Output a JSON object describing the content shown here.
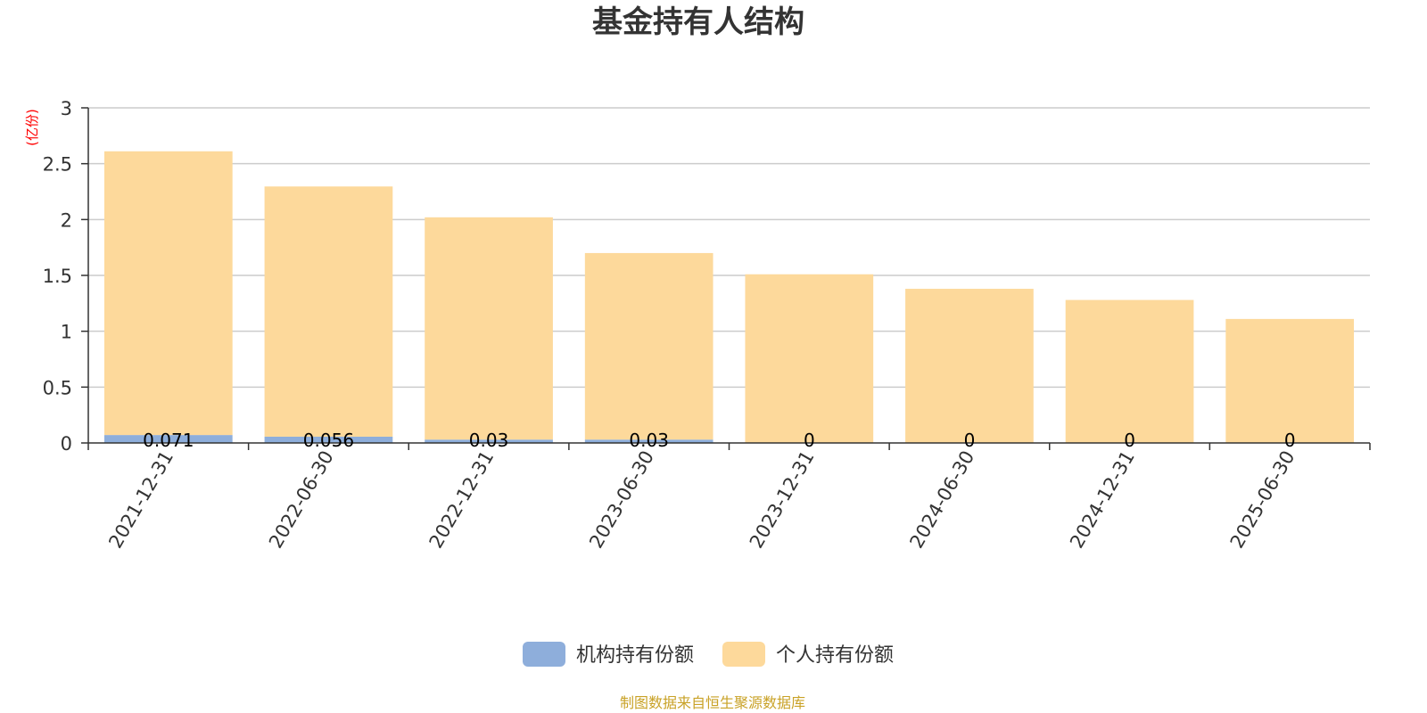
{
  "chart_data": {
    "type": "bar",
    "stacked": true,
    "title": "基金持有人结构",
    "unit_label": "(亿份)",
    "categories": [
      "2021-12-31",
      "2022-06-30",
      "2022-12-31",
      "2023-06-30",
      "2023-12-31",
      "2024-06-30",
      "2024-12-31",
      "2025-06-30"
    ],
    "series": [
      {
        "name": "机构持有份额",
        "color": "#8eaedb",
        "values": [
          0.071,
          0.056,
          0.03,
          0.03,
          0,
          0,
          0,
          0
        ],
        "labels": [
          "0.071",
          "0.056",
          "0.03",
          "0.03",
          "0",
          "0",
          "0",
          "0"
        ]
      },
      {
        "name": "个人持有份额",
        "color": "#fdd99b",
        "values": [
          2.54,
          2.24,
          1.99,
          1.67,
          1.51,
          1.38,
          1.28,
          1.11
        ]
      }
    ],
    "ylim": [
      0,
      3
    ],
    "yticks": [
      "0",
      "0.5",
      "1",
      "1.5",
      "2",
      "2.5",
      "3"
    ],
    "grid": true,
    "legend_position": "bottom-center",
    "source_note": "制图数据来自恒生聚源数据库"
  }
}
